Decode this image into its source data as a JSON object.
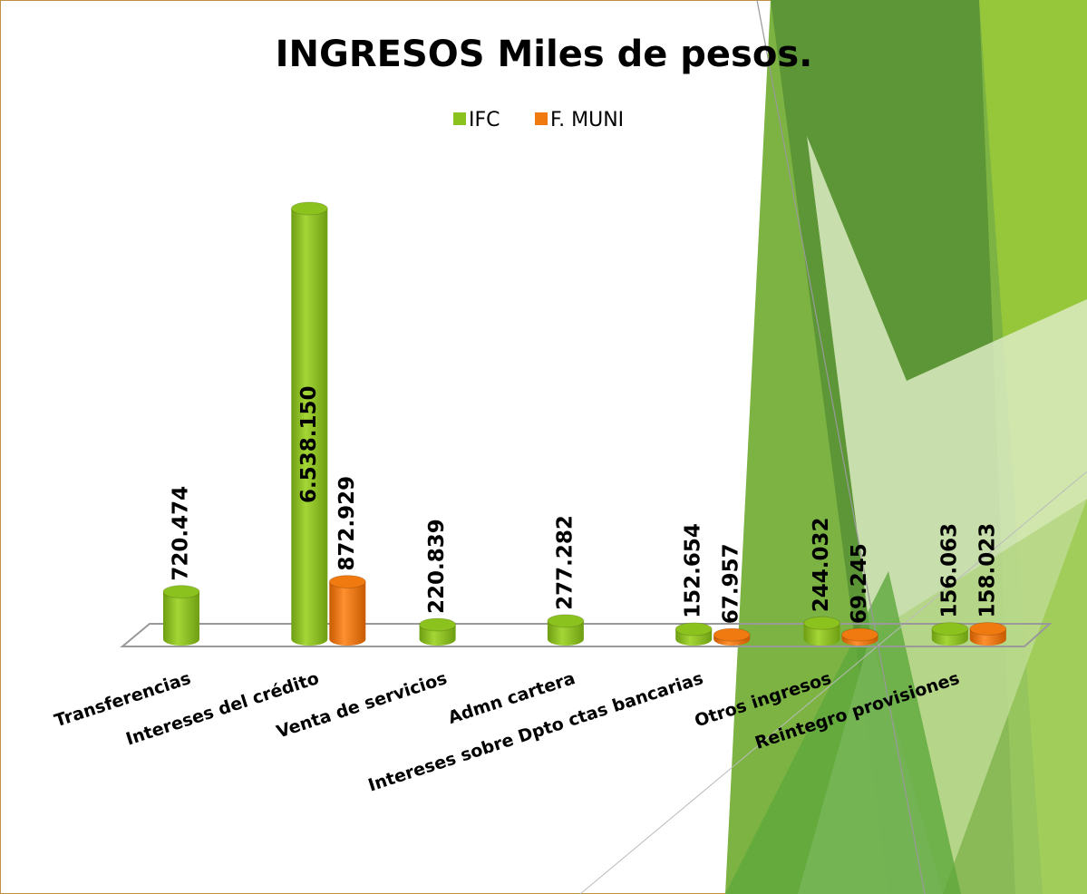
{
  "chart_data": {
    "type": "bar",
    "title": "INGRESOS Miles de pesos.",
    "categories": [
      "Transferencias",
      "Intereses del crédito",
      "Venta de servicios",
      "Admn cartera",
      "Intereses sobre Dpto ctas bancarias",
      "Otros ingresos",
      "Reintegro provisiones"
    ],
    "series": [
      {
        "name": "IFC",
        "color": "#8cc21e",
        "values": [
          720474,
          6538150,
          220839,
          277282,
          152654,
          244032,
          156063
        ],
        "value_labels": [
          "720.474",
          "6.538.150",
          "220.839",
          "277.282",
          "152.654",
          "244.032",
          "156.063"
        ]
      },
      {
        "name": "F. MUNI",
        "color": "#f07a10",
        "values": [
          null,
          872929,
          null,
          null,
          67957,
          69245,
          158023
        ],
        "value_labels": [
          null,
          "872.929",
          null,
          null,
          "67.957",
          "69.245",
          "158.023"
        ]
      }
    ],
    "legend": "top"
  }
}
